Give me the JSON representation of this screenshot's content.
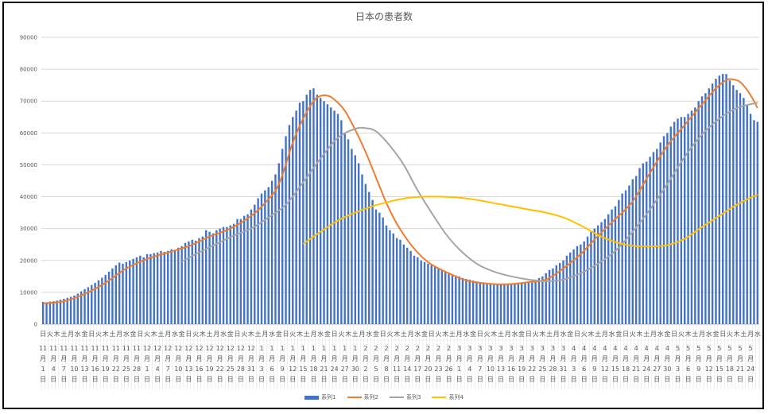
{
  "chart_data": {
    "type": "bar+line",
    "title": "日本の患者数",
    "xlabel": "",
    "ylabel": "",
    "ylim": [
      0,
      90000
    ],
    "yticks": [
      "0",
      "10000",
      "20000",
      "30000",
      "40000",
      "50000",
      "60000",
      "70000",
      "80000",
      "90000"
    ],
    "grid": true,
    "legend_position": "bottom",
    "weekday_names": [
      "日",
      "月",
      "火",
      "水",
      "木",
      "金",
      "土"
    ],
    "date_labels": [
      "11月1日",
      "11月4日",
      "11月7日",
      "11月10日",
      "11月13日",
      "11月16日",
      "11月19日",
      "11月22日",
      "11月25日",
      "11月28日",
      "12月1日",
      "12月4日",
      "12月7日",
      "12月10日",
      "12月13日",
      "12月16日",
      "12月19日",
      "12月22日",
      "12月25日",
      "12月28日",
      "12月31日",
      "1月3日",
      "1月6日",
      "1月9日",
      "1月12日",
      "1月15日",
      "1月18日",
      "1月21日",
      "1月24日",
      "1月27日",
      "1月30日",
      "2月2日",
      "2月5日",
      "2月8日",
      "2月11日",
      "2月14日",
      "2月17日",
      "2月20日",
      "2月23日",
      "2月26日",
      "3月1日",
      "3月4日",
      "3月7日",
      "3月10日",
      "3月13日",
      "3月16日",
      "3月19日",
      "3月22日",
      "3月25日",
      "3月28日",
      "3月31日",
      "4月3日",
      "4月6日",
      "4月9日",
      "4月12日",
      "4月15日",
      "4月18日",
      "4月21日",
      "4月24日",
      "4月27日",
      "4月30日",
      "5月3日",
      "5月6日",
      "5月9日",
      "5月12日",
      "5月15日",
      "5月18日",
      "5月21日",
      "5月24日"
    ],
    "series": [
      {
        "name": "系列1",
        "kind": "bar",
        "color": "#4472c4",
        "values": [
          7000,
          6900,
          7100,
          7200,
          7400,
          7700,
          8000,
          8300,
          8600,
          9000,
          9600,
          10300,
          11000,
          11600,
          12300,
          13000,
          13800,
          14600,
          15500,
          16500,
          17500,
          18500,
          19300,
          19000,
          19500,
          20000,
          20500,
          21000,
          21500,
          21000,
          22000,
          22000,
          22300,
          22500,
          23000,
          22700,
          23000,
          23500,
          23200,
          24000,
          24500,
          25500,
          26000,
          26500,
          26200,
          27000,
          27500,
          29500,
          29000,
          28500,
          29500,
          30000,
          30500,
          30500,
          31000,
          31500,
          33000,
          33000,
          34000,
          34500,
          36000,
          37500,
          39500,
          41000,
          42000,
          43000,
          45000,
          47000,
          50500,
          55000,
          59000,
          62500,
          65000,
          67000,
          69500,
          70000,
          72000,
          73500,
          74000,
          72000,
          71000,
          70000,
          69000,
          68000,
          67000,
          66000,
          64000,
          60000,
          58000,
          55000,
          53000,
          50500,
          47000,
          44000,
          41500,
          39000,
          36000,
          35000,
          33500,
          31000,
          29500,
          28500,
          27000,
          26500,
          25000,
          24000,
          23000,
          21500,
          21000,
          20000,
          19500,
          19000,
          18500,
          18000,
          17500,
          17000,
          16500,
          16000,
          15500,
          15300,
          15000,
          14500,
          14200,
          14000,
          13700,
          13400,
          13200,
          13000,
          12900,
          12800,
          12600,
          12500,
          12500,
          12400,
          12500,
          12600,
          12700,
          12800,
          12900,
          13000,
          13200,
          13500,
          14000,
          14500,
          15000,
          16000,
          17000,
          17500,
          18500,
          19200,
          20000,
          21500,
          22500,
          23500,
          24500,
          25000,
          26000,
          27500,
          29000,
          30000,
          31000,
          32000,
          33000,
          34500,
          36000,
          37000,
          39000,
          41000,
          42000,
          43500,
          45500,
          46500,
          49000,
          50500,
          51000,
          52500,
          54000,
          55000,
          57000,
          59000,
          60000,
          62000,
          63500,
          64500,
          65000,
          65000,
          66000,
          67000,
          68000,
          70000,
          71500,
          72500,
          74000,
          75500,
          77000,
          78000,
          78500,
          78500,
          76500,
          75000,
          73500,
          72500,
          71000,
          69000,
          66000,
          64000,
          63500
        ]
      },
      {
        "name": "系列2",
        "kind": "line",
        "color": "#ed7d31",
        "points": [
          [
            0,
            6500
          ],
          [
            6,
            7200
          ],
          [
            12,
            9500
          ],
          [
            18,
            13000
          ],
          [
            24,
            17500
          ],
          [
            30,
            20500
          ],
          [
            36,
            22500
          ],
          [
            42,
            24500
          ],
          [
            48,
            27500
          ],
          [
            54,
            30000
          ],
          [
            60,
            34000
          ],
          [
            64,
            38000
          ],
          [
            68,
            44000
          ],
          [
            72,
            57000
          ],
          [
            75,
            64500
          ],
          [
            78,
            70000
          ],
          [
            80,
            71600
          ],
          [
            82,
            71700
          ],
          [
            84,
            70500
          ],
          [
            87,
            67000
          ],
          [
            90,
            61000
          ],
          [
            93,
            54000
          ],
          [
            96,
            46000
          ],
          [
            99,
            38000
          ],
          [
            102,
            31500
          ],
          [
            105,
            26500
          ],
          [
            108,
            22500
          ],
          [
            111,
            19500
          ],
          [
            114,
            17500
          ],
          [
            117,
            16000
          ],
          [
            120,
            14500
          ],
          [
            123,
            13500
          ],
          [
            126,
            13000
          ],
          [
            130,
            12600
          ],
          [
            135,
            12600
          ],
          [
            140,
            13200
          ],
          [
            145,
            14000
          ],
          [
            150,
            17500
          ],
          [
            155,
            22000
          ],
          [
            160,
            27700
          ],
          [
            165,
            33000
          ],
          [
            170,
            38500
          ],
          [
            175,
            47500
          ],
          [
            180,
            56000
          ],
          [
            185,
            62500
          ],
          [
            190,
            69000
          ],
          [
            194,
            74000
          ],
          [
            197,
            76600
          ],
          [
            199,
            76800
          ],
          [
            201,
            76000
          ],
          [
            203,
            73500
          ],
          [
            205,
            70000
          ],
          [
            206,
            67800
          ]
        ]
      },
      {
        "name": "系列3",
        "kind": "line",
        "color": "#a5a5a5",
        "points": [
          [
            40,
            19700
          ],
          [
            45,
            22500
          ],
          [
            50,
            25200
          ],
          [
            55,
            27800
          ],
          [
            60,
            30000
          ],
          [
            65,
            33500
          ],
          [
            70,
            37500
          ],
          [
            75,
            44500
          ],
          [
            80,
            52000
          ],
          [
            85,
            58500
          ],
          [
            90,
            61300
          ],
          [
            93,
            61500
          ],
          [
            96,
            60500
          ],
          [
            100,
            56000
          ],
          [
            104,
            50000
          ],
          [
            108,
            42000
          ],
          [
            112,
            35000
          ],
          [
            116,
            28500
          ],
          [
            120,
            23500
          ],
          [
            125,
            19000
          ],
          [
            130,
            16500
          ],
          [
            135,
            15000
          ],
          [
            140,
            14000
          ],
          [
            145,
            13500
          ],
          [
            150,
            14000
          ],
          [
            155,
            16000
          ],
          [
            160,
            19000
          ],
          [
            165,
            23000
          ],
          [
            170,
            29000
          ],
          [
            175,
            36000
          ],
          [
            180,
            44000
          ],
          [
            185,
            52500
          ],
          [
            190,
            59500
          ],
          [
            195,
            64500
          ],
          [
            200,
            67800
          ],
          [
            206,
            69500
          ]
        ]
      },
      {
        "name": "系列4",
        "kind": "line",
        "color": "#ffc000",
        "points": [
          [
            75,
            25200
          ],
          [
            80,
            29000
          ],
          [
            85,
            32500
          ],
          [
            90,
            35000
          ],
          [
            95,
            37000
          ],
          [
            100,
            38500
          ],
          [
            105,
            39600
          ],
          [
            110,
            40000
          ],
          [
            115,
            40000
          ],
          [
            120,
            39700
          ],
          [
            125,
            39000
          ],
          [
            130,
            38000
          ],
          [
            135,
            37000
          ],
          [
            140,
            36000
          ],
          [
            145,
            35000
          ],
          [
            150,
            33500
          ],
          [
            155,
            31000
          ],
          [
            160,
            28000
          ],
          [
            165,
            25800
          ],
          [
            170,
            24600
          ],
          [
            175,
            24400
          ],
          [
            180,
            24800
          ],
          [
            185,
            26800
          ],
          [
            190,
            30500
          ],
          [
            195,
            34000
          ],
          [
            200,
            37500
          ],
          [
            206,
            40700
          ]
        ]
      }
    ]
  }
}
